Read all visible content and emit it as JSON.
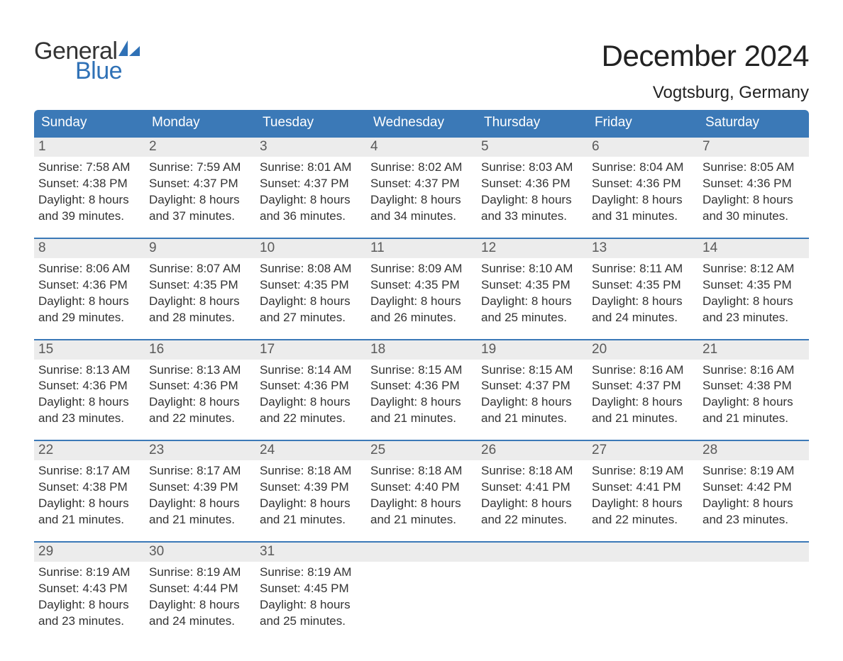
{
  "logo": {
    "text1": "General",
    "text2": "Blue",
    "sail_color": "#2f71b6"
  },
  "title": "December 2024",
  "location": "Vogtsburg, Germany",
  "colors": {
    "header_bg": "#3b79b7",
    "header_text": "#ffffff",
    "daynum_bg": "#ececec",
    "daynum_text": "#5a5a5a",
    "body_text": "#333333",
    "rule": "#3b79b7"
  },
  "days_of_week": [
    "Sunday",
    "Monday",
    "Tuesday",
    "Wednesday",
    "Thursday",
    "Friday",
    "Saturday"
  ],
  "labels": {
    "sunrise": "Sunrise:",
    "sunset": "Sunset:",
    "daylight": "Daylight:"
  },
  "weeks": [
    [
      {
        "n": 1,
        "sunrise": "7:58 AM",
        "sunset": "4:38 PM",
        "daylight": "8 hours and 39 minutes."
      },
      {
        "n": 2,
        "sunrise": "7:59 AM",
        "sunset": "4:37 PM",
        "daylight": "8 hours and 37 minutes."
      },
      {
        "n": 3,
        "sunrise": "8:01 AM",
        "sunset": "4:37 PM",
        "daylight": "8 hours and 36 minutes."
      },
      {
        "n": 4,
        "sunrise": "8:02 AM",
        "sunset": "4:37 PM",
        "daylight": "8 hours and 34 minutes."
      },
      {
        "n": 5,
        "sunrise": "8:03 AM",
        "sunset": "4:36 PM",
        "daylight": "8 hours and 33 minutes."
      },
      {
        "n": 6,
        "sunrise": "8:04 AM",
        "sunset": "4:36 PM",
        "daylight": "8 hours and 31 minutes."
      },
      {
        "n": 7,
        "sunrise": "8:05 AM",
        "sunset": "4:36 PM",
        "daylight": "8 hours and 30 minutes."
      }
    ],
    [
      {
        "n": 8,
        "sunrise": "8:06 AM",
        "sunset": "4:36 PM",
        "daylight": "8 hours and 29 minutes."
      },
      {
        "n": 9,
        "sunrise": "8:07 AM",
        "sunset": "4:35 PM",
        "daylight": "8 hours and 28 minutes."
      },
      {
        "n": 10,
        "sunrise": "8:08 AM",
        "sunset": "4:35 PM",
        "daylight": "8 hours and 27 minutes."
      },
      {
        "n": 11,
        "sunrise": "8:09 AM",
        "sunset": "4:35 PM",
        "daylight": "8 hours and 26 minutes."
      },
      {
        "n": 12,
        "sunrise": "8:10 AM",
        "sunset": "4:35 PM",
        "daylight": "8 hours and 25 minutes."
      },
      {
        "n": 13,
        "sunrise": "8:11 AM",
        "sunset": "4:35 PM",
        "daylight": "8 hours and 24 minutes."
      },
      {
        "n": 14,
        "sunrise": "8:12 AM",
        "sunset": "4:35 PM",
        "daylight": "8 hours and 23 minutes."
      }
    ],
    [
      {
        "n": 15,
        "sunrise": "8:13 AM",
        "sunset": "4:36 PM",
        "daylight": "8 hours and 23 minutes."
      },
      {
        "n": 16,
        "sunrise": "8:13 AM",
        "sunset": "4:36 PM",
        "daylight": "8 hours and 22 minutes."
      },
      {
        "n": 17,
        "sunrise": "8:14 AM",
        "sunset": "4:36 PM",
        "daylight": "8 hours and 22 minutes."
      },
      {
        "n": 18,
        "sunrise": "8:15 AM",
        "sunset": "4:36 PM",
        "daylight": "8 hours and 21 minutes."
      },
      {
        "n": 19,
        "sunrise": "8:15 AM",
        "sunset": "4:37 PM",
        "daylight": "8 hours and 21 minutes."
      },
      {
        "n": 20,
        "sunrise": "8:16 AM",
        "sunset": "4:37 PM",
        "daylight": "8 hours and 21 minutes."
      },
      {
        "n": 21,
        "sunrise": "8:16 AM",
        "sunset": "4:38 PM",
        "daylight": "8 hours and 21 minutes."
      }
    ],
    [
      {
        "n": 22,
        "sunrise": "8:17 AM",
        "sunset": "4:38 PM",
        "daylight": "8 hours and 21 minutes."
      },
      {
        "n": 23,
        "sunrise": "8:17 AM",
        "sunset": "4:39 PM",
        "daylight": "8 hours and 21 minutes."
      },
      {
        "n": 24,
        "sunrise": "8:18 AM",
        "sunset": "4:39 PM",
        "daylight": "8 hours and 21 minutes."
      },
      {
        "n": 25,
        "sunrise": "8:18 AM",
        "sunset": "4:40 PM",
        "daylight": "8 hours and 21 minutes."
      },
      {
        "n": 26,
        "sunrise": "8:18 AM",
        "sunset": "4:41 PM",
        "daylight": "8 hours and 22 minutes."
      },
      {
        "n": 27,
        "sunrise": "8:19 AM",
        "sunset": "4:41 PM",
        "daylight": "8 hours and 22 minutes."
      },
      {
        "n": 28,
        "sunrise": "8:19 AM",
        "sunset": "4:42 PM",
        "daylight": "8 hours and 23 minutes."
      }
    ],
    [
      {
        "n": 29,
        "sunrise": "8:19 AM",
        "sunset": "4:43 PM",
        "daylight": "8 hours and 23 minutes."
      },
      {
        "n": 30,
        "sunrise": "8:19 AM",
        "sunset": "4:44 PM",
        "daylight": "8 hours and 24 minutes."
      },
      {
        "n": 31,
        "sunrise": "8:19 AM",
        "sunset": "4:45 PM",
        "daylight": "8 hours and 25 minutes."
      },
      null,
      null,
      null,
      null
    ]
  ]
}
